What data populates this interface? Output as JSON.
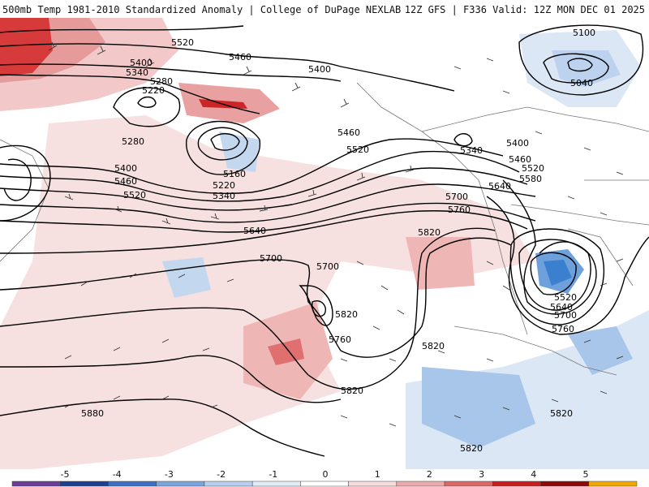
{
  "header": {
    "title_left": "500mb Temp 1981-2010 Standardized Anomaly | College of DuPage NEXLAB",
    "title_right": "12Z GFS | F336 Valid: 12Z MON DEC 01 2025"
  },
  "contour_labels": [
    "5520",
    "5460",
    "5400",
    "5340",
    "5280",
    "5220",
    "5400",
    "5160",
    "5220",
    "5340",
    "5280",
    "5400",
    "5460",
    "5520",
    "5640",
    "5700",
    "5700",
    "5760",
    "5820",
    "5820",
    "5820",
    "5880",
    "5820",
    "5820",
    "5100",
    "5040",
    "5460",
    "5520",
    "5340",
    "5400",
    "5460",
    "5520",
    "5580",
    "5640",
    "5700",
    "5760",
    "5520",
    "5640",
    "5700",
    "5760",
    "5820"
  ],
  "colorbar": {
    "ticks": [
      "-5",
      "-4",
      "-3",
      "-2",
      "-1",
      "0",
      "1",
      "2",
      "3",
      "4",
      "5"
    ],
    "colors": [
      "#6a3d9a",
      "#1f3f8f",
      "#3b6fc4",
      "#7aa5dc",
      "#b7cfec",
      "#e1ebf6",
      "#ffffff",
      "#f6dcdc",
      "#ecaaaa",
      "#dd6666",
      "#c81e1e",
      "#8c0a0a",
      "#f0a800"
    ]
  }
}
